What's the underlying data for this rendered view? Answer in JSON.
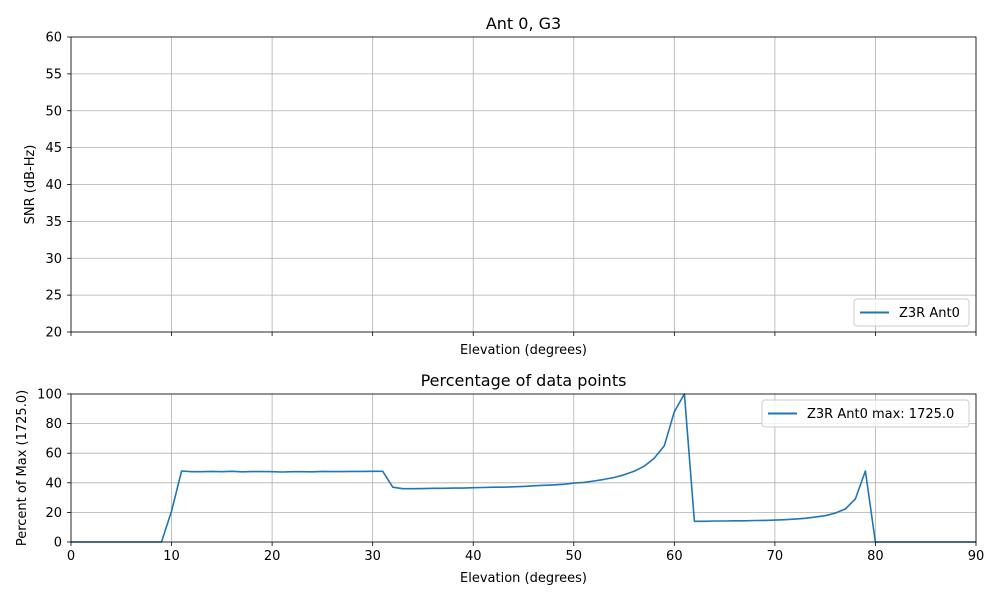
{
  "chart_data": [
    {
      "type": "line",
      "title": "Ant 0, G3",
      "xlabel": "Elevation (degrees)",
      "ylabel": "SNR (dB-Hz)",
      "xlim": [
        0,
        90
      ],
      "ylim": [
        20,
        60
      ],
      "yticks": [
        20,
        25,
        30,
        35,
        40,
        45,
        50,
        55,
        60
      ],
      "xticks": [
        0,
        10,
        20,
        30,
        40,
        50,
        60,
        70,
        80,
        90
      ],
      "show_xtick_labels": false,
      "grid": true,
      "legend": {
        "placement": "lower-right",
        "entries": [
          "Z3R Ant0"
        ]
      },
      "series": [
        {
          "name": "Z3R Ant0",
          "color": "#1f77b4",
          "x": [],
          "y": []
        }
      ]
    },
    {
      "type": "line",
      "title": "Percentage of data points",
      "xlabel": "Elevation (degrees)",
      "ylabel": "Percent of Max (1725.0)",
      "xlim": [
        0,
        90
      ],
      "ylim": [
        0,
        100
      ],
      "yticks": [
        0,
        20,
        40,
        60,
        80,
        100
      ],
      "xticks": [
        0,
        10,
        20,
        30,
        40,
        50,
        60,
        70,
        80,
        90
      ],
      "show_xtick_labels": true,
      "grid": true,
      "legend": {
        "placement": "upper-right",
        "entries": [
          "Z3R Ant0 max: 1725.0"
        ]
      },
      "series": [
        {
          "name": "Z3R Ant0 max: 1725.0",
          "color": "#1f77b4",
          "x": [
            0,
            1,
            2,
            3,
            4,
            5,
            6,
            7,
            8,
            9,
            10,
            11,
            12,
            13,
            14,
            15,
            16,
            17,
            18,
            19,
            20,
            21,
            22,
            23,
            24,
            25,
            26,
            27,
            28,
            29,
            30,
            31,
            32,
            33,
            34,
            35,
            36,
            37,
            38,
            39,
            40,
            41,
            42,
            43,
            44,
            45,
            46,
            47,
            48,
            49,
            50,
            51,
            52,
            53,
            54,
            55,
            56,
            57,
            58,
            59,
            60,
            61,
            62,
            63,
            64,
            65,
            66,
            67,
            68,
            69,
            70,
            71,
            72,
            73,
            74,
            75,
            76,
            77,
            78,
            79,
            80,
            81,
            82,
            83,
            84,
            85,
            86,
            87,
            88,
            89,
            90
          ],
          "y": [
            0,
            0,
            0,
            0,
            0,
            0,
            0,
            0,
            0,
            0,
            21,
            48,
            47.5,
            47.5,
            47.7,
            47.5,
            47.8,
            47.4,
            47.6,
            47.6,
            47.5,
            47.3,
            47.5,
            47.5,
            47.4,
            47.7,
            47.6,
            47.6,
            47.7,
            47.7,
            47.8,
            47.8,
            37,
            36,
            36,
            36.1,
            36.3,
            36.3,
            36.4,
            36.4,
            36.7,
            36.8,
            37,
            37,
            37.3,
            37.6,
            38,
            38.3,
            38.6,
            39,
            39.8,
            40.3,
            41.2,
            42.3,
            43.6,
            45.4,
            47.8,
            51.2,
            56.6,
            65,
            88,
            100,
            14,
            14,
            14.2,
            14.2,
            14.3,
            14.3,
            14.5,
            14.6,
            14.8,
            15.1,
            15.5,
            16,
            16.8,
            17.8,
            19.5,
            22.3,
            29,
            48,
            0,
            0,
            0,
            0,
            0,
            0,
            0,
            0,
            0,
            0,
            0
          ]
        }
      ]
    }
  ]
}
